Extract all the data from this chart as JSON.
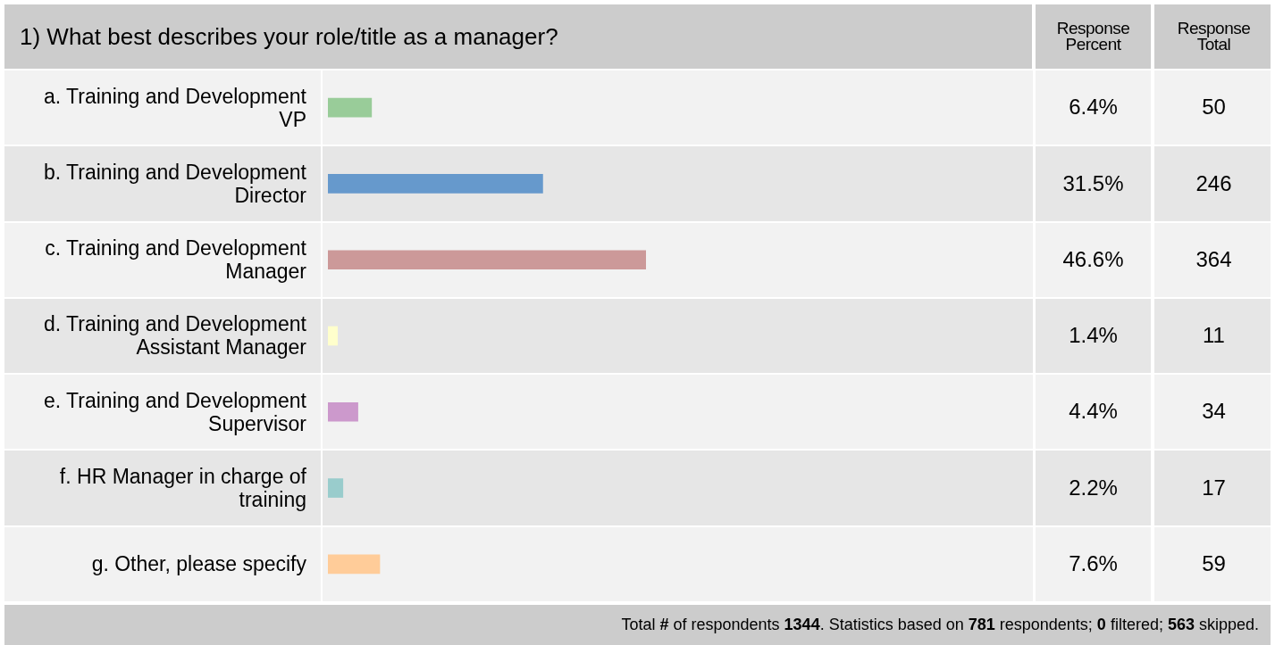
{
  "chart_data": {
    "type": "bar",
    "orientation": "horizontal",
    "title": "1) What best describes your role/title as a manager?",
    "categories": [
      "a. Training and Development VP",
      "b. Training and Development Director",
      "c. Training and Development Manager",
      "d. Training and Development Assistant Manager",
      "e. Training and Development Supervisor",
      "f. HR Manager in charge of training",
      "g. Other, please specify"
    ],
    "values": [
      6.4,
      31.5,
      46.6,
      1.4,
      4.4,
      2.2,
      7.6
    ],
    "colors": [
      "#99cc99",
      "#6699cc",
      "#cc9999",
      "#ffffcc",
      "#cc99cc",
      "#99cccc",
      "#ffcc99"
    ],
    "value_labels": [
      "6.4%",
      "31.5%",
      "46.6%",
      "1.4%",
      "4.4%",
      "2.2%",
      "7.6%"
    ],
    "tick_labels": false,
    "legend": false,
    "annotations": [
      "Response Percent",
      "Response Total",
      "50",
      "246",
      "364",
      "11",
      "34",
      "17",
      "59",
      "Total # of respondents 1344. Statistics based on 781 respondents; 0 filtered; 563 skipped."
    ]
  }
}
